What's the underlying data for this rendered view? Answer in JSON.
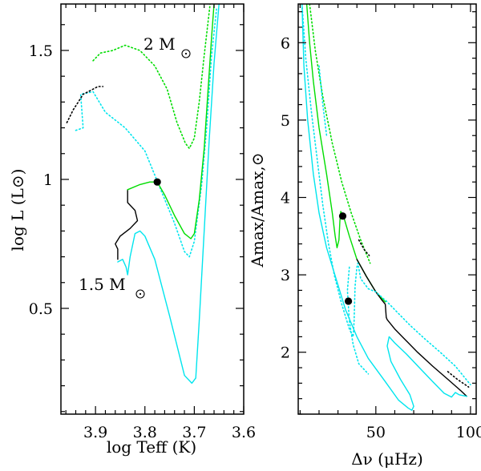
{
  "chart_data": [
    {
      "type": "line",
      "id": "hr-diagram",
      "xlabel": "log Teff (K)",
      "ylabel": "log L (L⊙)",
      "xlim": [
        3.97,
        3.6
      ],
      "ylim": [
        0.09,
        1.68
      ],
      "xticks": [
        "3.9",
        "3.8",
        "3.7",
        "3.6"
      ],
      "yticks": [
        "0.5",
        "1",
        "1.5"
      ],
      "annotations": [
        {
          "name": "mass-2",
          "text": "2 M",
          "at": [
            3.91,
            1.51
          ]
        },
        {
          "name": "mass-1-5",
          "text": "1.5 M",
          "at": [
            3.908,
            0.61
          ]
        }
      ],
      "series": [
        {
          "name": "2 Msun dotted (cyan)",
          "color": "#00e5ee",
          "dash": "dotted",
          "points": [
            [
              3.94,
              1.19
            ],
            [
              3.925,
              1.2
            ],
            [
              3.93,
              1.33
            ],
            [
              3.905,
              1.34
            ],
            [
              3.88,
              1.26
            ],
            [
              3.84,
              1.2
            ],
            [
              3.8,
              1.11
            ],
            [
              3.77,
              0.97
            ],
            [
              3.74,
              0.83
            ],
            [
              3.72,
              0.72
            ],
            [
              3.71,
              0.7
            ],
            [
              3.7,
              0.76
            ],
            [
              3.685,
              0.98
            ],
            [
              3.675,
              1.2
            ],
            [
              3.665,
              1.48
            ],
            [
              3.655,
              1.66
            ]
          ]
        },
        {
          "name": "2 Msun dotted (black)",
          "color": "#000000",
          "dash": "dotted",
          "points": [
            [
              3.958,
              1.22
            ],
            [
              3.945,
              1.27
            ],
            [
              3.935,
              1.3
            ],
            [
              3.925,
              1.33
            ],
            [
              3.905,
              1.35
            ],
            [
              3.895,
              1.36
            ],
            [
              3.885,
              1.36
            ]
          ]
        },
        {
          "name": "2 Msun dotted (green)",
          "color": "#00dd00",
          "dash": "dotted",
          "points": [
            [
              3.905,
              1.46
            ],
            [
              3.89,
              1.49
            ],
            [
              3.865,
              1.5
            ],
            [
              3.84,
              1.52
            ],
            [
              3.81,
              1.5
            ],
            [
              3.78,
              1.44
            ],
            [
              3.755,
              1.35
            ],
            [
              3.735,
              1.22
            ],
            [
              3.718,
              1.14
            ],
            [
              3.71,
              1.12
            ],
            [
              3.7,
              1.16
            ],
            [
              3.69,
              1.3
            ],
            [
              3.68,
              1.48
            ],
            [
              3.668,
              1.68
            ]
          ]
        },
        {
          "name": "1.5 Msun (black)",
          "color": "#000000",
          "dash": "solid",
          "points": [
            [
              3.855,
              0.69
            ],
            [
              3.855,
              0.73
            ],
            [
              3.86,
              0.75
            ],
            [
              3.85,
              0.78
            ],
            [
              3.83,
              0.81
            ],
            [
              3.815,
              0.84
            ],
            [
              3.82,
              0.88
            ],
            [
              3.835,
              0.91
            ],
            [
              3.835,
              0.96
            ]
          ]
        },
        {
          "name": "1.5 Msun (green)",
          "color": "#00dd00",
          "dash": "solid",
          "points": [
            [
              3.835,
              0.96
            ],
            [
              3.81,
              0.98
            ],
            [
              3.79,
              0.99
            ],
            [
              3.775,
              0.99
            ],
            [
              3.76,
              0.94
            ],
            [
              3.74,
              0.86
            ],
            [
              3.72,
              0.79
            ],
            [
              3.707,
              0.77
            ],
            [
              3.7,
              0.79
            ],
            [
              3.69,
              0.92
            ],
            [
              3.68,
              1.12
            ],
            [
              3.672,
              1.35
            ],
            [
              3.665,
              1.55
            ],
            [
              3.66,
              1.68
            ]
          ]
        },
        {
          "name": "1.5 Msun (cyan)",
          "color": "#00e5ee",
          "dash": "solid",
          "points": [
            [
              3.855,
              0.68
            ],
            [
              3.845,
              0.69
            ],
            [
              3.838,
              0.66
            ],
            [
              3.835,
              0.63
            ],
            [
              3.83,
              0.7
            ],
            [
              3.82,
              0.79
            ],
            [
              3.81,
              0.8
            ],
            [
              3.8,
              0.78
            ],
            [
              3.78,
              0.69
            ],
            [
              3.75,
              0.47
            ],
            [
              3.72,
              0.24
            ],
            [
              3.705,
              0.21
            ],
            [
              3.697,
              0.23
            ],
            [
              3.69,
              0.45
            ],
            [
              3.68,
              0.8
            ],
            [
              3.67,
              1.15
            ],
            [
              3.66,
              1.45
            ],
            [
              3.65,
              1.68
            ]
          ]
        }
      ],
      "markers": [
        {
          "name": "star-marker",
          "x": 3.775,
          "y": 0.99
        }
      ]
    },
    {
      "type": "line",
      "id": "amplitude-plot",
      "xlabel": "Δν (μHz)",
      "ylabel": "Amax/Amax,⊙",
      "xlim": [
        9,
        103
      ],
      "ylim": [
        1.2,
        6.5
      ],
      "xticks": [
        "50",
        "100"
      ],
      "xtick_values": [
        50,
        100
      ],
      "yticks": [
        "2",
        "3",
        "4",
        "5",
        "6"
      ],
      "series": [
        {
          "name": "green solid",
          "color": "#00dd00",
          "dash": "solid",
          "points": [
            [
              13.5,
              6.5
            ],
            [
              15,
              6.0
            ],
            [
              17,
              5.5
            ],
            [
              20,
              4.9
            ],
            [
              24,
              4.3
            ],
            [
              27,
              3.8
            ],
            [
              28.5,
              3.5
            ],
            [
              29.5,
              3.35
            ],
            [
              30.5,
              3.45
            ],
            [
              31,
              3.7
            ],
            [
              31.5,
              3.82
            ],
            [
              33,
              3.75
            ],
            [
              36,
              3.5
            ],
            [
              40,
              3.2
            ],
            [
              45,
              2.98
            ],
            [
              50,
              2.78
            ],
            [
              55,
              2.65
            ]
          ]
        },
        {
          "name": "green dotted",
          "color": "#00dd00",
          "dash": "dotted",
          "points": [
            [
              15,
              6.5
            ],
            [
              18,
              5.9
            ],
            [
              22,
              5.3
            ],
            [
              27,
              4.7
            ],
            [
              32,
              4.2
            ],
            [
              37,
              3.8
            ],
            [
              42,
              3.45
            ],
            [
              47,
              3.15
            ]
          ]
        },
        {
          "name": "black solid",
          "color": "#000000",
          "dash": "solid",
          "points": [
            [
              40,
              3.2
            ],
            [
              45,
              2.98
            ],
            [
              50,
              2.78
            ],
            [
              53,
              2.68
            ],
            [
              55,
              2.62
            ],
            [
              55.5,
              2.45
            ],
            [
              56,
              2.42
            ],
            [
              60,
              2.3
            ],
            [
              66,
              2.15
            ],
            [
              72,
              2.0
            ],
            [
              80,
              1.82
            ],
            [
              88,
              1.65
            ],
            [
              95,
              1.5
            ],
            [
              98,
              1.43
            ]
          ]
        },
        {
          "name": "black dotted",
          "color": "#000000",
          "dash": "dotted",
          "points": [
            [
              41,
              3.45
            ],
            [
              44,
              3.32
            ],
            [
              46.5,
              3.25
            ]
          ]
        },
        {
          "name": "black dotted tail",
          "color": "#000000",
          "dash": "dotted",
          "points": [
            [
              88,
              1.75
            ],
            [
              93,
              1.65
            ],
            [
              99,
              1.55
            ]
          ]
        },
        {
          "name": "cyan solid",
          "color": "#00e5ee",
          "dash": "solid",
          "points": [
            [
              11,
              6.5
            ],
            [
              12,
              5.7
            ],
            [
              14,
              5.0
            ],
            [
              17,
              4.3
            ],
            [
              20,
              3.8
            ],
            [
              24,
              3.35
            ],
            [
              29,
              2.95
            ],
            [
              34,
              2.55
            ],
            [
              40,
              2.2
            ],
            [
              46,
              1.92
            ],
            [
              55,
              1.62
            ],
            [
              62,
              1.38
            ],
            [
              67,
              1.28
            ],
            [
              69,
              1.25
            ],
            [
              70,
              1.3
            ],
            [
              68,
              1.45
            ],
            [
              63,
              1.65
            ],
            [
              58,
              1.88
            ],
            [
              56,
              2.08
            ],
            [
              57,
              2.2
            ],
            [
              60,
              2.12
            ],
            [
              66,
              1.98
            ],
            [
              73,
              1.8
            ],
            [
              80,
              1.62
            ],
            [
              86,
              1.47
            ],
            [
              90,
              1.42
            ],
            [
              92,
              1.48
            ],
            [
              94,
              1.45
            ],
            [
              98,
              1.43
            ]
          ]
        },
        {
          "name": "cyan dotted",
          "color": "#00e5ee",
          "dash": "dotted",
          "points": [
            [
              11,
              6.5
            ],
            [
              13,
              5.8
            ],
            [
              16,
              5.1
            ],
            [
              19,
              4.5
            ],
            [
              22,
              3.9
            ],
            [
              25,
              3.4
            ],
            [
              28,
              3.0
            ],
            [
              32,
              2.62
            ],
            [
              36,
              2.3
            ],
            [
              38,
              2.2
            ],
            [
              38.5,
              2.4
            ],
            [
              39,
              2.85
            ],
            [
              40,
              3.1
            ],
            [
              40.5,
              3.15
            ],
            [
              42,
              2.95
            ],
            [
              46,
              2.82
            ],
            [
              50,
              2.78
            ],
            [
              56,
              2.65
            ],
            [
              60,
              2.55
            ],
            [
              68,
              2.35
            ],
            [
              76,
              2.17
            ],
            [
              84,
              2.0
            ],
            [
              92,
              1.82
            ],
            [
              100,
              1.58
            ]
          ]
        },
        {
          "name": "cyan dotted inner",
          "color": "#00e5ee",
          "dash": "dotted",
          "points": [
            [
              20,
              5.7
            ],
            [
              22,
              5.2
            ],
            [
              24,
              4.8
            ]
          ]
        },
        {
          "name": "cyan dotted loop",
          "color": "#00e5ee",
          "dash": "dotted",
          "points": [
            [
              36,
              3.1
            ],
            [
              35,
              2.8
            ],
            [
              36,
              2.4
            ],
            [
              38,
              2.1
            ],
            [
              41,
              1.85
            ],
            [
              46,
              1.72
            ]
          ]
        }
      ],
      "markers": [
        {
          "name": "dot-marker-upper",
          "x": 32.5,
          "y": 3.76
        },
        {
          "name": "dot-marker-lower",
          "x": 35.5,
          "y": 2.66
        }
      ]
    }
  ]
}
